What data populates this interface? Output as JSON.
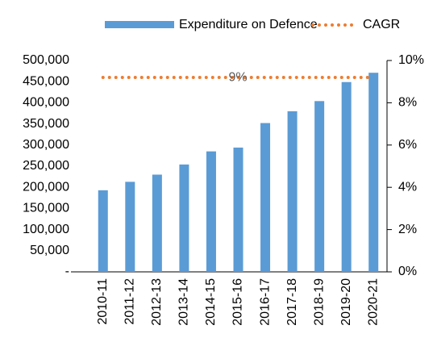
{
  "chart_data": {
    "type": "bar",
    "categories": [
      "2010-11",
      "2011-12",
      "2012-13",
      "2013-14",
      "2014-15",
      "2015-16",
      "2016-17",
      "2017-18",
      "2018-19",
      "2019-20",
      "2020-21"
    ],
    "series": [
      {
        "name": "Expenditure on Defence",
        "color": "#5b9bd5",
        "values": [
          193000,
          213000,
          230000,
          254000,
          285000,
          294000,
          352000,
          380000,
          404000,
          449000,
          471000
        ]
      },
      {
        "name": "CAGR",
        "color": "#ed7d31",
        "axis": "y2",
        "type": "line",
        "values": [
          9.2,
          9.2,
          9.2,
          9.2,
          9.2,
          9.2,
          9.2,
          9.2,
          9.2,
          9.2,
          9.2
        ]
      }
    ],
    "annotations": [
      {
        "text": "9%",
        "value": 9
      }
    ],
    "ylim": [
      0,
      500000
    ],
    "yticks": [
      {
        "value": 0,
        "label": "-"
      },
      {
        "value": 50000,
        "label": "50,000"
      },
      {
        "value": 100000,
        "label": "100,000"
      },
      {
        "value": 150000,
        "label": "150,000"
      },
      {
        "value": 200000,
        "label": "200,000"
      },
      {
        "value": 250000,
        "label": "250,000"
      },
      {
        "value": 300000,
        "label": "300,000"
      },
      {
        "value": 350000,
        "label": "350,000"
      },
      {
        "value": 400000,
        "label": "400,000"
      },
      {
        "value": 450000,
        "label": "450,000"
      },
      {
        "value": 500000,
        "label": "500,000"
      }
    ],
    "y2lim": [
      0,
      10
    ],
    "y2ticks": [
      {
        "value": 0,
        "label": "0%"
      },
      {
        "value": 2,
        "label": "2%"
      },
      {
        "value": 4,
        "label": "4%"
      },
      {
        "value": 6,
        "label": "6%"
      },
      {
        "value": 8,
        "label": "8%"
      },
      {
        "value": 10,
        "label": "10%"
      }
    ],
    "legend": "top"
  }
}
